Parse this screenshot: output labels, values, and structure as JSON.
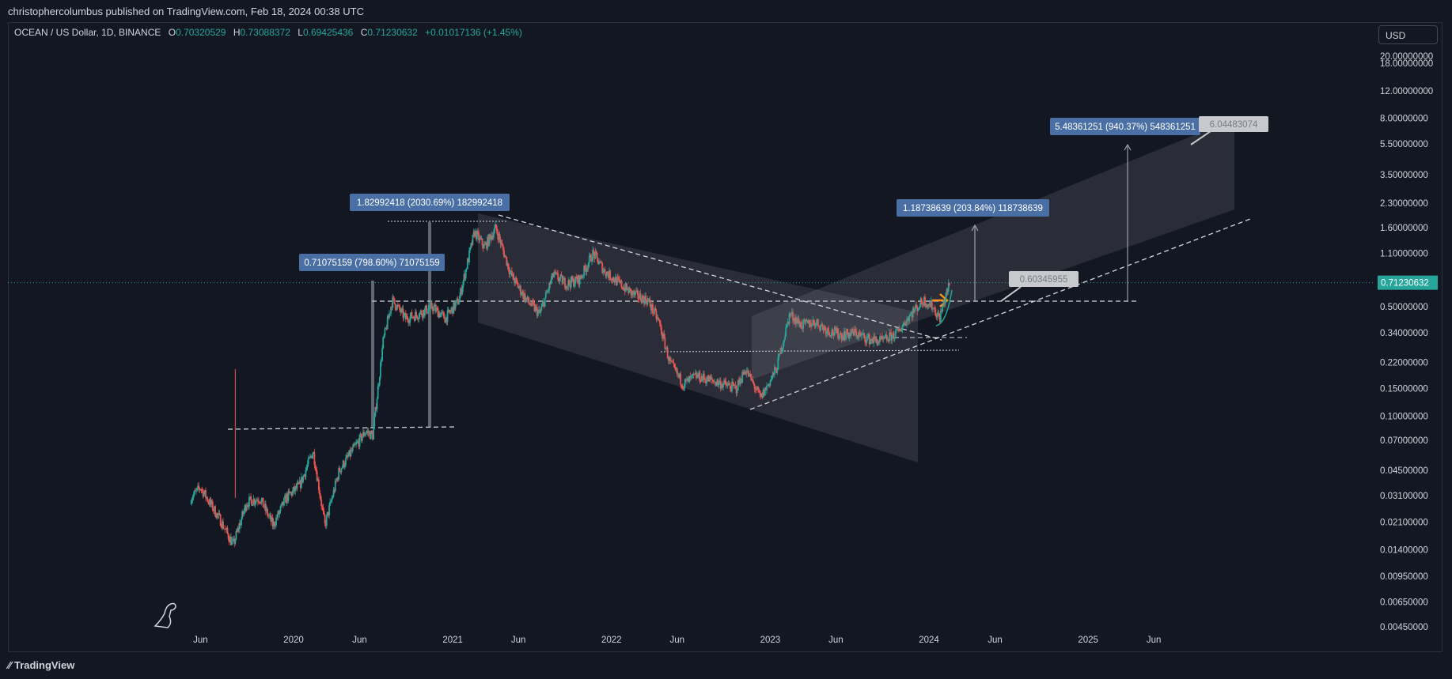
{
  "header": {
    "published_by": "christophercolumbus published on TradingView.com, Feb 18, 2024 00:38 UTC"
  },
  "symbol": {
    "name": "OCEAN / US Dollar, 1D, BINANCE",
    "open_label": "O",
    "open": "0.70320529",
    "high_label": "H",
    "high": "0.73088372",
    "low_label": "L",
    "low": "0.69425436",
    "close_label": "C",
    "close": "0.71230632",
    "change": "+0.01017136 (+1.45%)"
  },
  "currency_button": "USD",
  "footer": {
    "brand": "TradingView"
  },
  "chart_data": {
    "type": "candlestick",
    "scale": "log",
    "y_ticks": [
      "20.00000000",
      "18.00000000",
      "12.00000000",
      "8.00000000",
      "5.50000000",
      "3.50000000",
      "2.30000000",
      "1.60000000",
      "1.10000000",
      "0.50000000",
      "0.34000000",
      "0.22000000",
      "0.15000000",
      "0.10000000",
      "0.07000000",
      "0.04500000",
      "0.03100000",
      "0.02100000",
      "0.01400000",
      "0.00950000",
      "0.00650000",
      "0.00450000"
    ],
    "y_tick_values": [
      20,
      18,
      12,
      8,
      5.5,
      3.5,
      2.3,
      1.6,
      1.1,
      0.5,
      0.34,
      0.22,
      0.15,
      0.1,
      0.07,
      0.045,
      0.031,
      0.021,
      0.014,
      0.0095,
      0.0065,
      0.0045
    ],
    "x_ticks": [
      "Jun",
      "2020",
      "Jun",
      "2021",
      "Jun",
      "2022",
      "Jun",
      "2023",
      "Jun",
      "2024",
      "Jun",
      "2025",
      "Jun"
    ],
    "x_tick_dates": [
      "2019-06-01",
      "2020-01-01",
      "2020-06-01",
      "2021-01-01",
      "2021-06-01",
      "2022-01-01",
      "2022-06-01",
      "2023-01-01",
      "2023-06-01",
      "2024-01-01",
      "2024-06-01",
      "2025-01-01",
      "2025-06-01"
    ],
    "last_price_label": "0.71230632",
    "last_price": 0.7123,
    "price_path": [
      [
        "2019-05-10",
        0.03
      ],
      [
        "2019-06-01",
        0.035
      ],
      [
        "2019-07-15",
        0.022
      ],
      [
        "2019-08-15",
        0.015
      ],
      [
        "2019-09-15",
        0.028
      ],
      [
        "2019-10-15",
        0.03
      ],
      [
        "2019-11-15",
        0.02
      ],
      [
        "2019-12-15",
        0.03
      ],
      [
        "2020-01-15",
        0.036
      ],
      [
        "2020-02-15",
        0.06
      ],
      [
        "2020-03-13",
        0.02
      ],
      [
        "2020-04-15",
        0.045
      ],
      [
        "2020-05-15",
        0.06
      ],
      [
        "2020-06-15",
        0.08
      ],
      [
        "2020-07-01",
        0.075
      ],
      [
        "2020-07-25",
        0.3
      ],
      [
        "2020-08-15",
        0.55
      ],
      [
        "2020-09-15",
        0.42
      ],
      [
        "2020-10-15",
        0.45
      ],
      [
        "2020-11-15",
        0.5
      ],
      [
        "2020-12-15",
        0.42
      ],
      [
        "2021-01-15",
        0.55
      ],
      [
        "2021-02-20",
        1.5
      ],
      [
        "2021-03-15",
        1.2
      ],
      [
        "2021-04-10",
        1.6
      ],
      [
        "2021-05-15",
        0.8
      ],
      [
        "2021-06-20",
        0.55
      ],
      [
        "2021-07-20",
        0.45
      ],
      [
        "2021-08-20",
        0.8
      ],
      [
        "2021-09-20",
        0.7
      ],
      [
        "2021-10-20",
        0.75
      ],
      [
        "2021-11-20",
        1.1
      ],
      [
        "2021-12-15",
        0.85
      ],
      [
        "2022-01-20",
        0.7
      ],
      [
        "2022-02-20",
        0.6
      ],
      [
        "2022-03-25",
        0.55
      ],
      [
        "2022-04-20",
        0.4
      ],
      [
        "2022-05-15",
        0.22
      ],
      [
        "2022-06-15",
        0.16
      ],
      [
        "2022-07-15",
        0.18
      ],
      [
        "2022-08-15",
        0.17
      ],
      [
        "2022-09-15",
        0.16
      ],
      [
        "2022-10-15",
        0.15
      ],
      [
        "2022-11-05",
        0.2
      ],
      [
        "2022-12-10",
        0.13
      ],
      [
        "2023-01-15",
        0.2
      ],
      [
        "2023-02-15",
        0.45
      ],
      [
        "2023-03-15",
        0.38
      ],
      [
        "2023-04-15",
        0.4
      ],
      [
        "2023-05-15",
        0.35
      ],
      [
        "2023-06-15",
        0.33
      ],
      [
        "2023-07-15",
        0.34
      ],
      [
        "2023-08-15",
        0.31
      ],
      [
        "2023-09-15",
        0.3
      ],
      [
        "2023-10-20",
        0.34
      ],
      [
        "2023-11-20",
        0.45
      ],
      [
        "2023-12-20",
        0.55
      ],
      [
        "2024-01-10",
        0.5
      ],
      [
        "2024-01-25",
        0.42
      ],
      [
        "2024-02-10",
        0.6
      ],
      [
        "2024-02-18",
        0.7123
      ]
    ],
    "measure_labels": [
      {
        "text": "0.71075159 (798.60%) 71075159"
      },
      {
        "text": "1.82992418 (2030.69%) 182992418"
      },
      {
        "text": "1.18738639 (203.84%) 118738639"
      },
      {
        "text": "5.48361251 (940.37%) 548361251"
      }
    ],
    "callouts": [
      {
        "text": "0.60345955"
      },
      {
        "text": "6.04483074"
      }
    ]
  }
}
